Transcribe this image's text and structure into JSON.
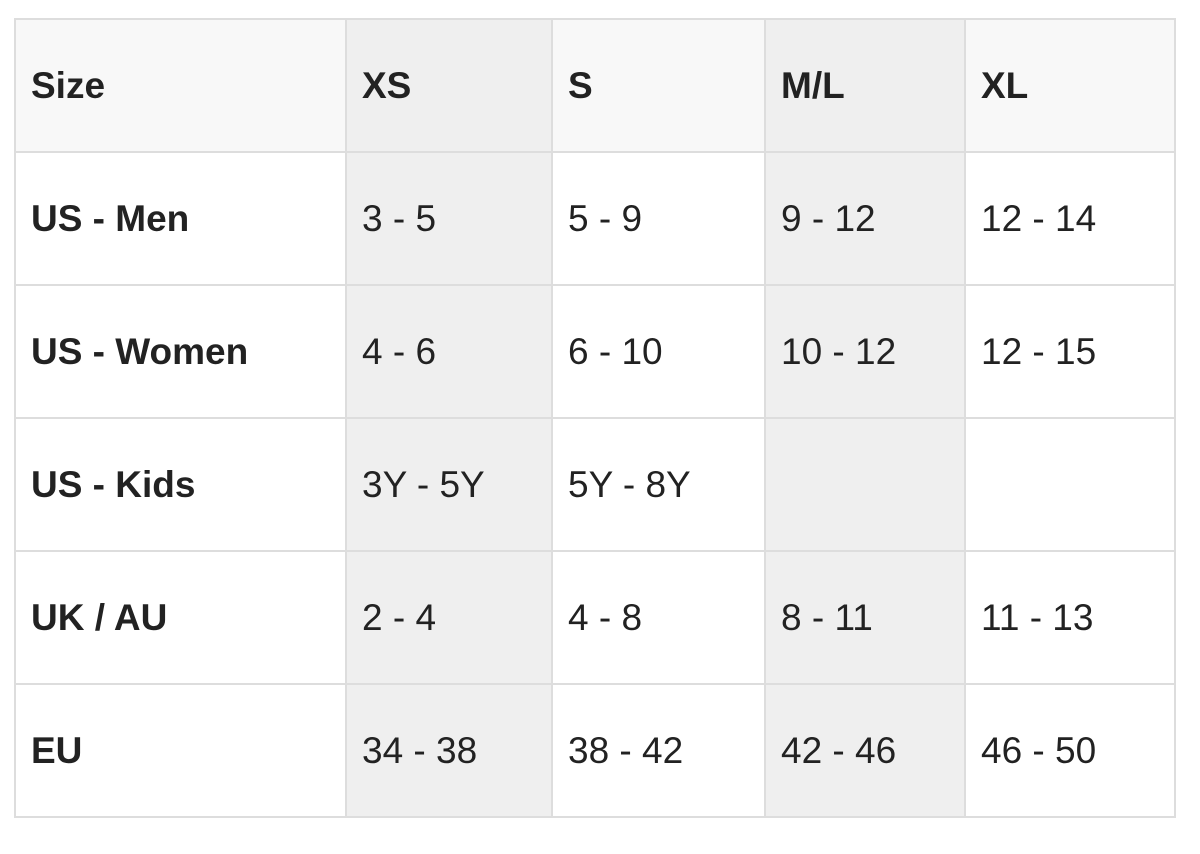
{
  "headers": [
    "Size",
    "XS",
    "S",
    "M/L",
    "XL"
  ],
  "rows": [
    {
      "label": "US - Men",
      "values": [
        "3 - 5",
        "5 - 9",
        "9 - 12",
        "12 - 14"
      ]
    },
    {
      "label": "US - Women",
      "values": [
        "4 - 6",
        "6 - 10",
        "10 - 12",
        "12 - 15"
      ]
    },
    {
      "label": "US - Kids",
      "values": [
        "3Y - 5Y",
        "5Y - 8Y",
        "",
        ""
      ]
    },
    {
      "label": "UK / AU",
      "values": [
        "2 - 4",
        "4 - 8",
        "8 - 11",
        "11 - 13"
      ]
    },
    {
      "label": "EU",
      "values": [
        "34 - 38",
        "38 - 42",
        "42 - 46",
        "46 - 50"
      ]
    }
  ],
  "colors": {
    "header_bg": "#f8f8f8",
    "shaded_column_bg": "#efefef",
    "border": "#dddddd",
    "text": "#222222"
  }
}
